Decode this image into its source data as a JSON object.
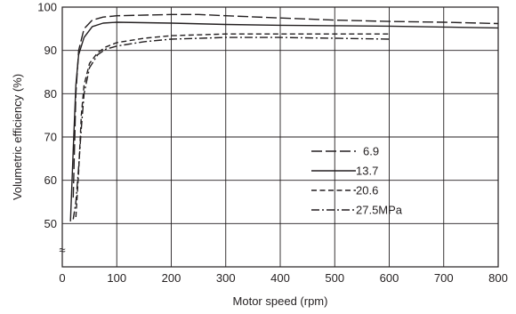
{
  "chart_data": {
    "type": "line",
    "title": "",
    "xlabel": "Motor speed (rpm)",
    "ylabel": "Volumetric  efficiency (%)",
    "xlim": [
      0,
      800
    ],
    "ylim": [
      40,
      100
    ],
    "x_ticks": [
      "0",
      "100",
      "200",
      "300",
      "400",
      "500",
      "600",
      "700",
      "800"
    ],
    "y_ticks": [
      "50",
      "60",
      "70",
      "80",
      "90",
      "100"
    ],
    "axis_break_symbol": "≈",
    "grid": true,
    "legend_position": "lower-right",
    "series": [
      {
        "name": "6.9",
        "dash": "long-dash",
        "points": [
          [
            20,
            56
          ],
          [
            25,
            80
          ],
          [
            30,
            90
          ],
          [
            40,
            95
          ],
          [
            55,
            97
          ],
          [
            75,
            97.7
          ],
          [
            100,
            98
          ],
          [
            200,
            98.3
          ],
          [
            250,
            98.3
          ],
          [
            300,
            98
          ],
          [
            400,
            97.5
          ],
          [
            500,
            97
          ],
          [
            600,
            96.7
          ],
          [
            700,
            96.5
          ],
          [
            800,
            96.2
          ]
        ]
      },
      {
        "name": "13.7",
        "dash": "solid",
        "points": [
          [
            15,
            50.5
          ],
          [
            20,
            67
          ],
          [
            25,
            82
          ],
          [
            30,
            89
          ],
          [
            40,
            93
          ],
          [
            55,
            95.5
          ],
          [
            75,
            96.3
          ],
          [
            100,
            96.5
          ],
          [
            200,
            96.3
          ],
          [
            300,
            96
          ],
          [
            400,
            95.8
          ],
          [
            500,
            95.7
          ],
          [
            600,
            95.6
          ],
          [
            700,
            95.4
          ],
          [
            800,
            95.2
          ]
        ]
      },
      {
        "name": "20.6",
        "dash": "short-dash",
        "points": [
          [
            25,
            51.5
          ],
          [
            30,
            62
          ],
          [
            35,
            75
          ],
          [
            40,
            82
          ],
          [
            50,
            87
          ],
          [
            65,
            89.5
          ],
          [
            80,
            90.8
          ],
          [
            100,
            91.8
          ],
          [
            150,
            92.8
          ],
          [
            200,
            93.4
          ],
          [
            300,
            93.8
          ],
          [
            400,
            93.8
          ],
          [
            500,
            93.8
          ],
          [
            600,
            93.8
          ]
        ]
      },
      {
        "name": "27.5MPa",
        "dash": "dash-dot",
        "points": [
          [
            20,
            51
          ],
          [
            25,
            55
          ],
          [
            30,
            63
          ],
          [
            35,
            72
          ],
          [
            40,
            80
          ],
          [
            50,
            86
          ],
          [
            65,
            89
          ],
          [
            80,
            90.3
          ],
          [
            100,
            91
          ],
          [
            150,
            92
          ],
          [
            200,
            92.6
          ],
          [
            300,
            93
          ],
          [
            400,
            93
          ],
          [
            500,
            92.8
          ],
          [
            600,
            92.6
          ]
        ]
      }
    ]
  }
}
